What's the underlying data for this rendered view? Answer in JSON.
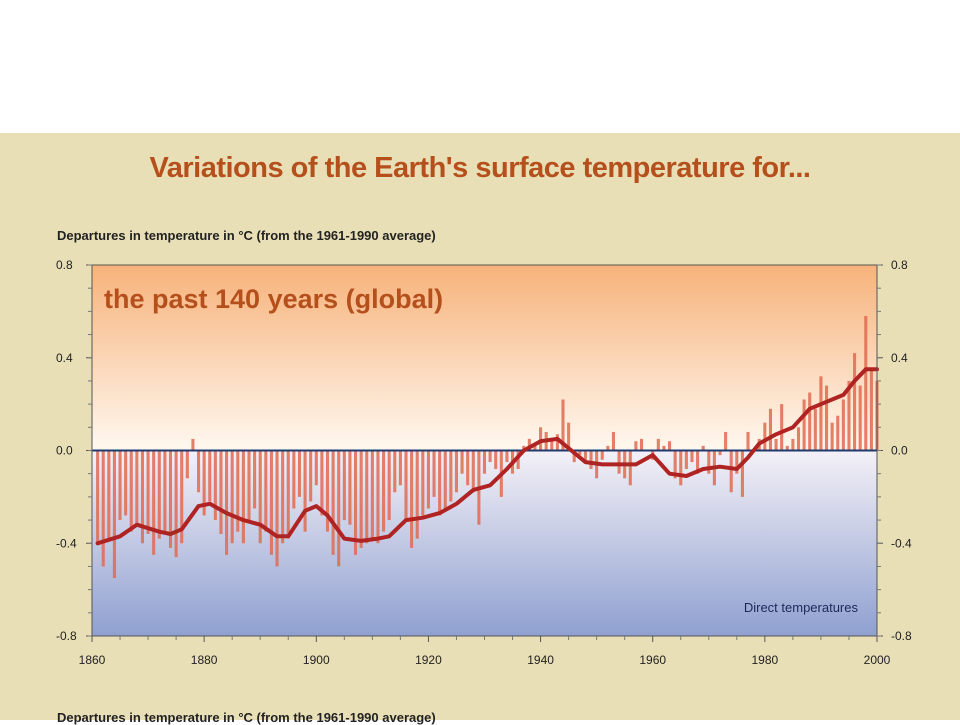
{
  "header": {
    "title": "Variations of the Earth's surface temperature for...",
    "y_caption": "Departures in temperature in °C (from the 1961-1990 average)",
    "bottom_caption": "Departures in temperature in °C (from the 1961-1990 average)"
  },
  "colors": {
    "panel": "#e9dfb6",
    "title": "#b5501c",
    "bars": "#e06a50",
    "smooth_line": "#b02323",
    "zero_line": "#1f3a6e",
    "bg_warm": "#f7b27a",
    "bg_cool": "#8fa0d0"
  },
  "chart_data": {
    "type": "bar",
    "title": "the past 140 years (global)",
    "annotation": "Direct temperatures",
    "xlabel": "",
    "ylabel": "",
    "xlim": [
      1860,
      2000
    ],
    "ylim": [
      -0.8,
      0.8
    ],
    "x_ticks": [
      "1860",
      "1880",
      "1900",
      "1920",
      "1940",
      "1960",
      "1980",
      "2000"
    ],
    "y_ticks": [
      "0.8",
      "0.4",
      "0.0",
      "-0.4",
      "-0.8"
    ],
    "legend": "none",
    "x": [
      1861,
      1862,
      1863,
      1864,
      1865,
      1866,
      1867,
      1868,
      1869,
      1870,
      1871,
      1872,
      1873,
      1874,
      1875,
      1876,
      1877,
      1878,
      1879,
      1880,
      1881,
      1882,
      1883,
      1884,
      1885,
      1886,
      1887,
      1888,
      1889,
      1890,
      1891,
      1892,
      1893,
      1894,
      1895,
      1896,
      1897,
      1898,
      1899,
      1900,
      1901,
      1902,
      1903,
      1904,
      1905,
      1906,
      1907,
      1908,
      1909,
      1910,
      1911,
      1912,
      1913,
      1914,
      1915,
      1916,
      1917,
      1918,
      1919,
      1920,
      1921,
      1922,
      1923,
      1924,
      1925,
      1926,
      1927,
      1928,
      1929,
      1930,
      1931,
      1932,
      1933,
      1934,
      1935,
      1936,
      1937,
      1938,
      1939,
      1940,
      1941,
      1942,
      1943,
      1944,
      1945,
      1946,
      1947,
      1948,
      1949,
      1950,
      1951,
      1952,
      1953,
      1954,
      1955,
      1956,
      1957,
      1958,
      1959,
      1960,
      1961,
      1962,
      1963,
      1964,
      1965,
      1966,
      1967,
      1968,
      1969,
      1970,
      1971,
      1972,
      1973,
      1974,
      1975,
      1976,
      1977,
      1978,
      1979,
      1980,
      1981,
      1982,
      1983,
      1984,
      1985,
      1986,
      1987,
      1988,
      1989,
      1990,
      1991,
      1992,
      1993,
      1994,
      1995,
      1996,
      1997,
      1998,
      1999,
      2000
    ],
    "series": [
      {
        "values": [
          -0.4,
          -0.5,
          -0.38,
          -0.55,
          -0.3,
          -0.28,
          -0.35,
          -0.32,
          -0.4,
          -0.36,
          -0.45,
          -0.38,
          -0.35,
          -0.42,
          -0.46,
          -0.4,
          -0.12,
          0.05,
          -0.18,
          -0.28,
          -0.22,
          -0.3,
          -0.36,
          -0.45,
          -0.4,
          -0.35,
          -0.4,
          -0.3,
          -0.25,
          -0.4,
          -0.35,
          -0.45,
          -0.5,
          -0.4,
          -0.38,
          -0.25,
          -0.2,
          -0.35,
          -0.22,
          -0.15,
          -0.28,
          -0.35,
          -0.45,
          -0.5,
          -0.3,
          -0.32,
          -0.45,
          -0.42,
          -0.4,
          -0.38,
          -0.4,
          -0.35,
          -0.3,
          -0.18,
          -0.15,
          -0.3,
          -0.42,
          -0.38,
          -0.28,
          -0.25,
          -0.2,
          -0.28,
          -0.25,
          -0.22,
          -0.18,
          -0.1,
          -0.15,
          -0.18,
          -0.32,
          -0.1,
          -0.05,
          -0.08,
          -0.2,
          -0.05,
          -0.1,
          -0.08,
          0.02,
          0.05,
          0.03,
          0.1,
          0.08,
          0.05,
          0.07,
          0.22,
          0.12,
          -0.05,
          -0.02,
          -0.05,
          -0.08,
          -0.12,
          -0.04,
          0.02,
          0.08,
          -0.1,
          -0.12,
          -0.15,
          0.04,
          0.05,
          0.0,
          -0.04,
          0.05,
          0.02,
          0.04,
          -0.12,
          -0.15,
          -0.08,
          -0.05,
          -0.1,
          0.02,
          -0.1,
          -0.15,
          -0.02,
          0.08,
          -0.18,
          -0.1,
          -0.2,
          0.08,
          0.0,
          0.05,
          0.12,
          0.18,
          0.05,
          0.2,
          0.02,
          0.05,
          0.1,
          0.22,
          0.25,
          0.18,
          0.32,
          0.28,
          0.12,
          0.15,
          0.22,
          0.3,
          0.42,
          0.28,
          0.58,
          0.35,
          0.3
        ]
      },
      {
        "name": "",
        "type": "line",
        "x": [
          1861,
          1865,
          1868,
          1872,
          1874,
          1876,
          1879,
          1881,
          1884,
          1887,
          1890,
          1893,
          1895,
          1898,
          1900,
          1902,
          1905,
          1908,
          1911,
          1913,
          1916,
          1919,
          1922,
          1925,
          1928,
          1931,
          1934,
          1937,
          1940,
          1943,
          1945,
          1948,
          1951,
          1954,
          1957,
          1960,
          1963,
          1966,
          1969,
          1972,
          1975,
          1977,
          1979,
          1982,
          1985,
          1988,
          1991,
          1994,
          1996,
          1998,
          2000
        ],
        "values": [
          -0.4,
          -0.37,
          -0.32,
          -0.35,
          -0.36,
          -0.34,
          -0.24,
          -0.23,
          -0.27,
          -0.3,
          -0.32,
          -0.37,
          -0.37,
          -0.26,
          -0.24,
          -0.28,
          -0.38,
          -0.39,
          -0.38,
          -0.37,
          -0.3,
          -0.29,
          -0.27,
          -0.23,
          -0.17,
          -0.15,
          -0.08,
          0.0,
          0.04,
          0.05,
          0.01,
          -0.05,
          -0.06,
          -0.06,
          -0.06,
          -0.02,
          -0.1,
          -0.11,
          -0.08,
          -0.07,
          -0.08,
          -0.03,
          0.03,
          0.07,
          0.1,
          0.18,
          0.21,
          0.24,
          0.3,
          0.35,
          0.35
        ]
      }
    ]
  }
}
